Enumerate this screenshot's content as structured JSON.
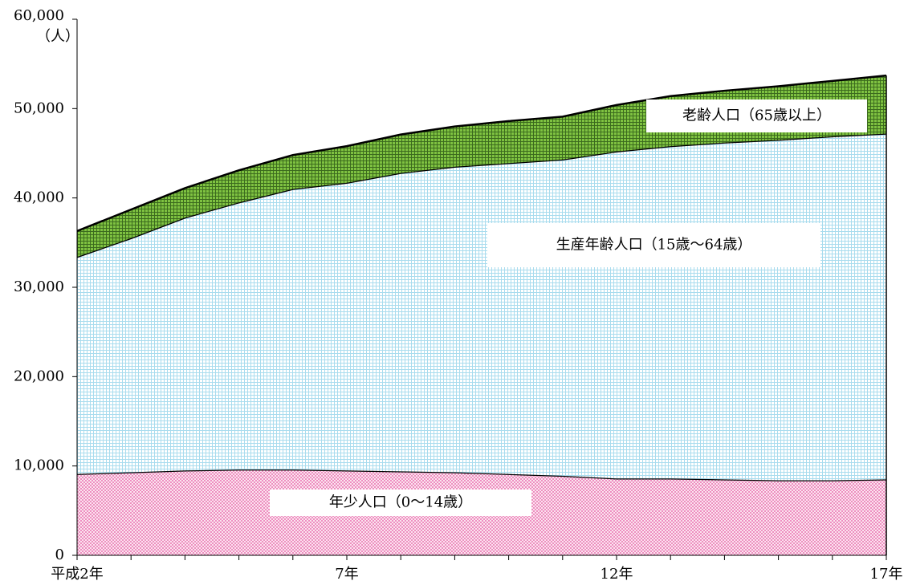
{
  "chart_data": {
    "type": "stacked_area",
    "y_axis_label": "（人）",
    "categories": [
      "平成2年",
      null,
      null,
      null,
      null,
      "7年",
      null,
      null,
      null,
      null,
      "12年",
      null,
      null,
      null,
      null,
      "17年"
    ],
    "series": [
      {
        "name": "年少人口（0～14歳）",
        "color": "#ee8fc0",
        "values": [
          9100,
          9300,
          9500,
          9600,
          9600,
          9500,
          9400,
          9300,
          9100,
          8900,
          8600,
          8600,
          8500,
          8400,
          8400,
          8500
        ]
      },
      {
        "name": "生産年齢人口（15歳～64歳）",
        "color": "#a9dcee",
        "values": [
          24300,
          26200,
          28300,
          29900,
          31400,
          32200,
          33400,
          34200,
          34800,
          35400,
          36600,
          37200,
          37700,
          38100,
          38500,
          38700
        ]
      },
      {
        "name": "老齢人口（65歳以上）",
        "color": "#7fc241",
        "values": [
          2900,
          3200,
          3300,
          3600,
          3800,
          4100,
          4300,
          4500,
          4700,
          4800,
          5200,
          5600,
          5800,
          6000,
          6200,
          6500
        ]
      }
    ],
    "ylim": [
      0,
      60000
    ],
    "yticks": [
      0,
      {
        "value": 10000,
        "label": "10,000"
      },
      {
        "value": 20000,
        "label": "20,000"
      },
      {
        "value": 30000,
        "label": "30,000"
      },
      {
        "value": 40000,
        "label": "40,000"
      },
      {
        "value": 50000,
        "label": "50,000"
      },
      {
        "value": 60000,
        "label": "60,000"
      }
    ]
  }
}
